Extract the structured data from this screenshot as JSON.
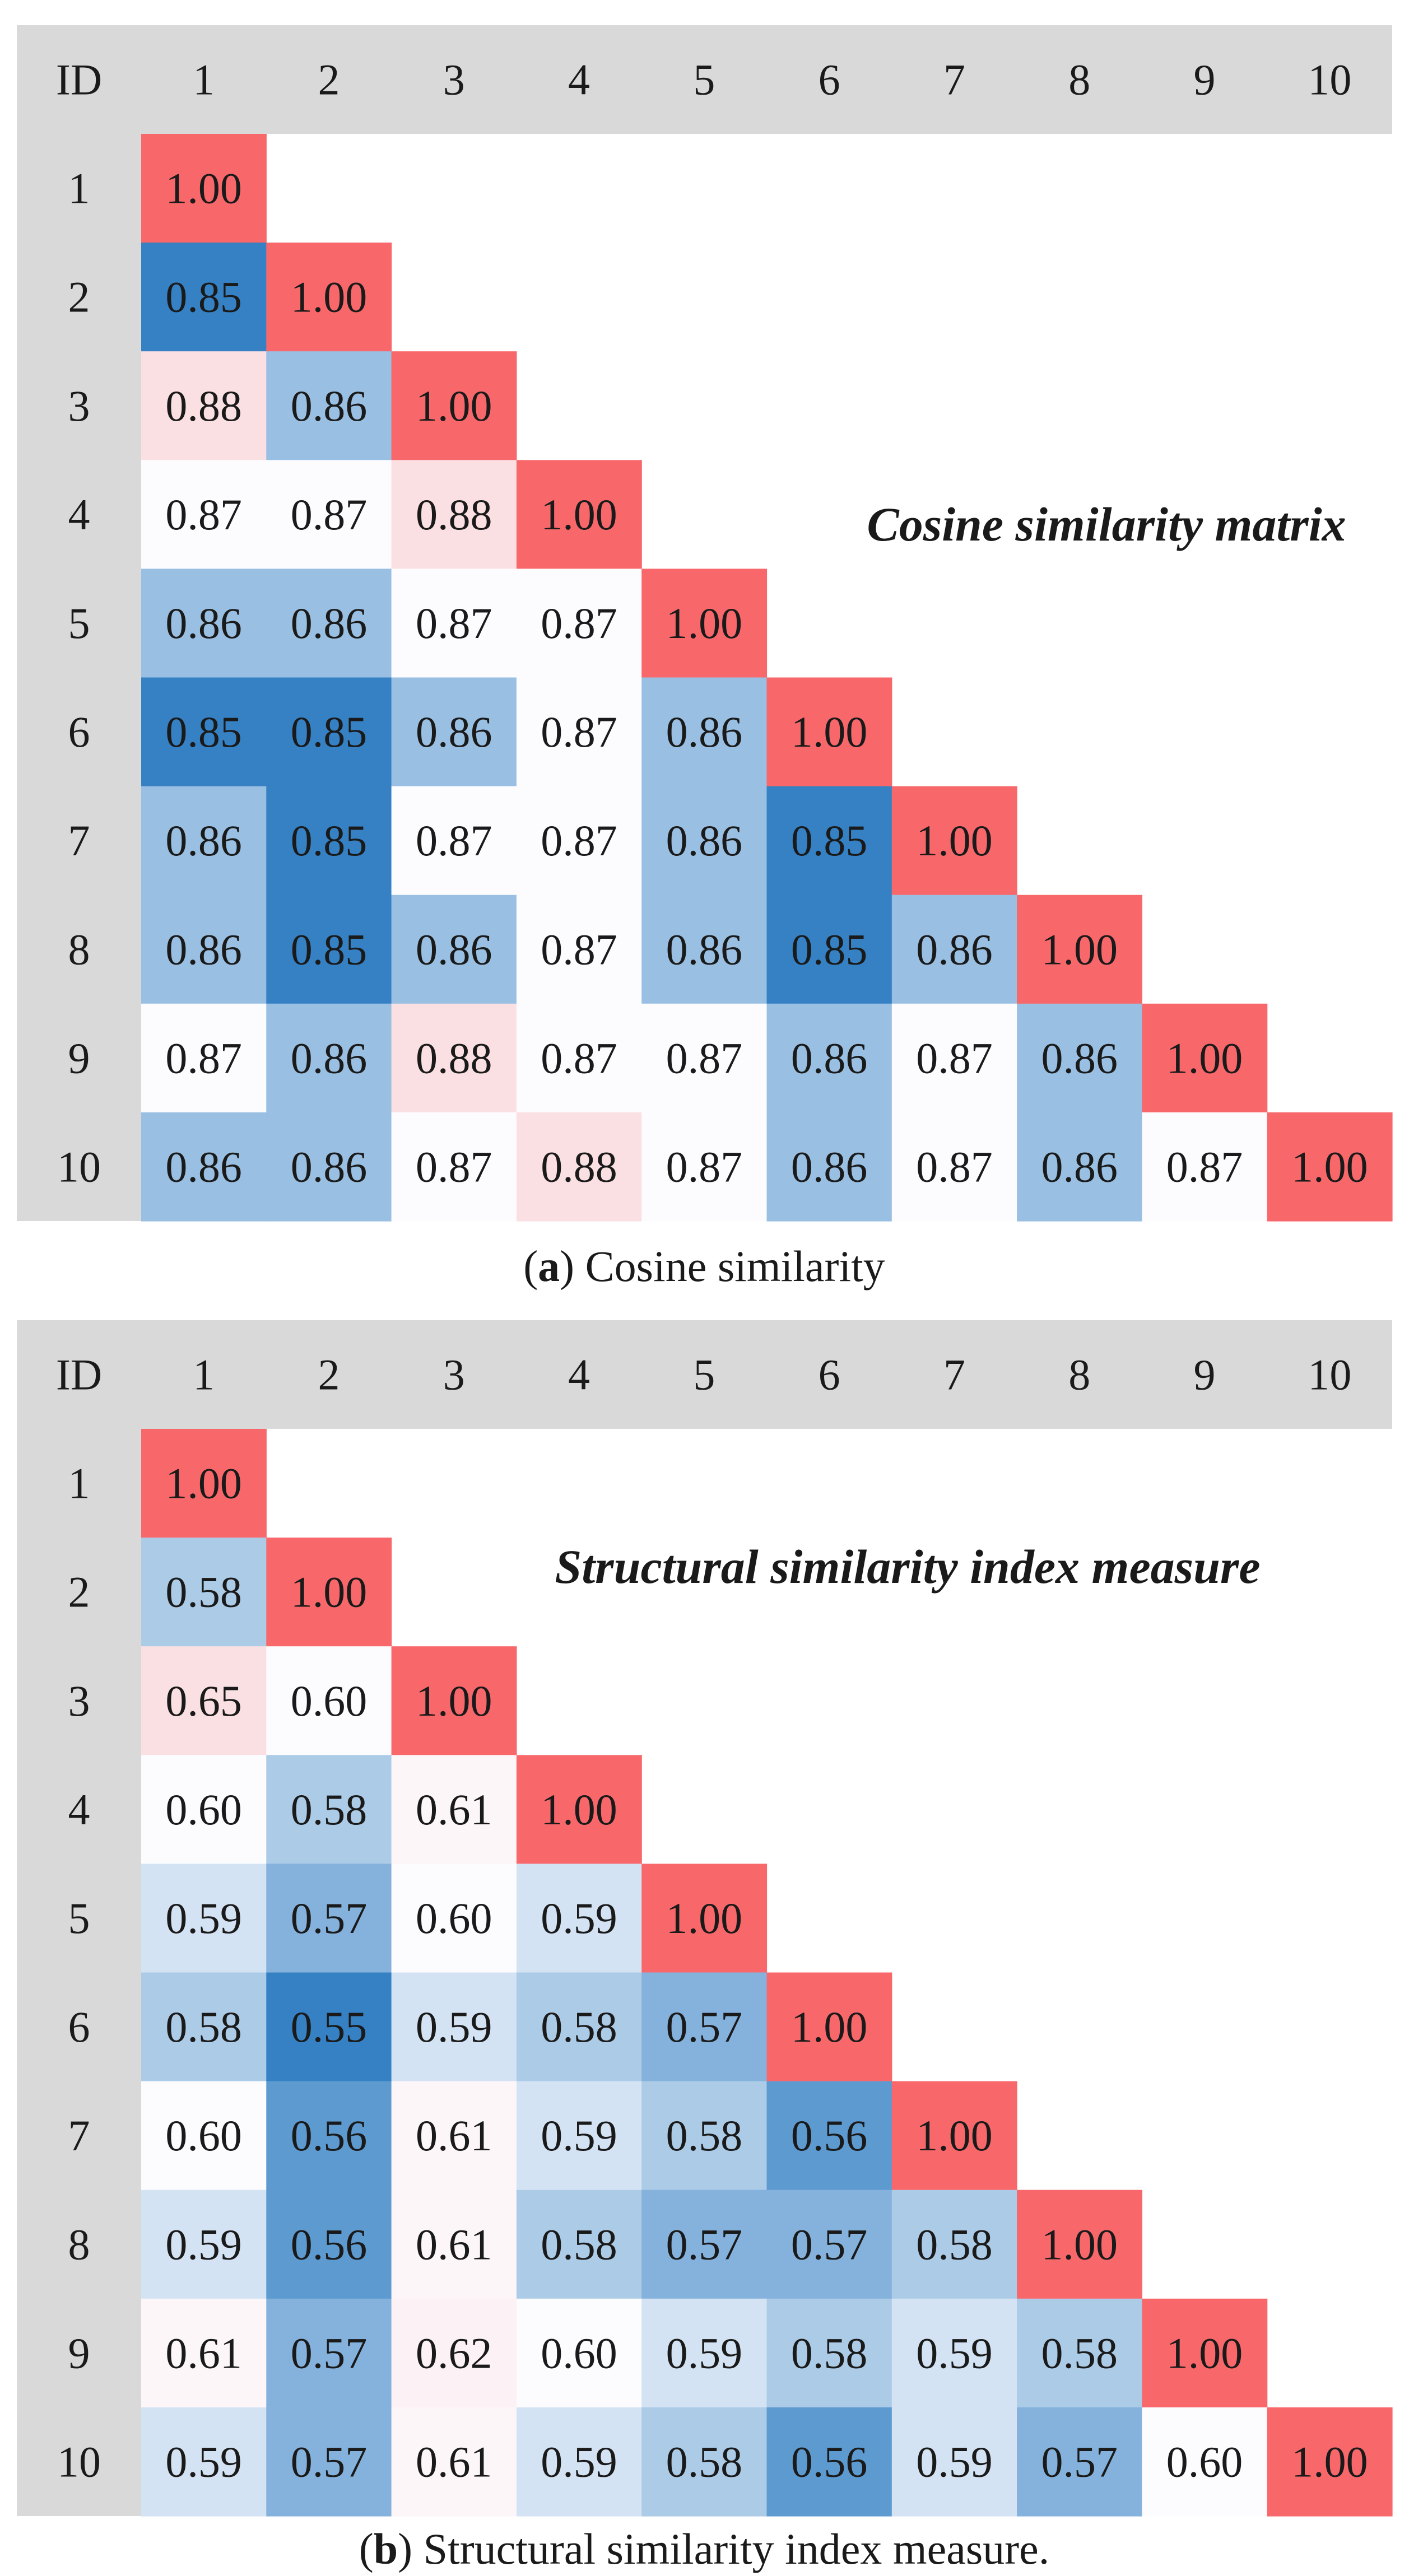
{
  "colors": {
    "header_bg": "#d9d9d9",
    "diagonal": "#f8686b",
    "low": "#3581c4",
    "mid": "#fcfcff",
    "high": "#fbe0e3",
    "text": "#1a1a1a"
  },
  "chart_data": [
    {
      "type": "heatmap",
      "title": "Cosine similarity matrix",
      "caption_label": "a",
      "caption_text": " Cosine similarity",
      "corner_label": "ID",
      "ids": [
        "1",
        "2",
        "3",
        "4",
        "5",
        "6",
        "7",
        "8",
        "9",
        "10"
      ],
      "vmin": 0.85,
      "vmid": 0.87,
      "vmax": 0.88,
      "rows": [
        [
          1.0
        ],
        [
          0.85,
          1.0
        ],
        [
          0.88,
          0.86,
          1.0
        ],
        [
          0.87,
          0.87,
          0.88,
          1.0
        ],
        [
          0.86,
          0.86,
          0.87,
          0.87,
          1.0
        ],
        [
          0.85,
          0.85,
          0.86,
          0.87,
          0.86,
          1.0
        ],
        [
          0.86,
          0.85,
          0.87,
          0.87,
          0.86,
          0.85,
          1.0
        ],
        [
          0.86,
          0.85,
          0.86,
          0.87,
          0.86,
          0.85,
          0.86,
          1.0
        ],
        [
          0.87,
          0.86,
          0.88,
          0.87,
          0.87,
          0.86,
          0.87,
          0.86,
          1.0
        ],
        [
          0.86,
          0.86,
          0.87,
          0.88,
          0.87,
          0.86,
          0.87,
          0.86,
          0.87,
          1.0
        ]
      ]
    },
    {
      "type": "heatmap",
      "title": "Structural similarity index measure",
      "caption_label": "b",
      "caption_text": " Structural similarity index measure.",
      "corner_label": "ID",
      "ids": [
        "1",
        "2",
        "3",
        "4",
        "5",
        "6",
        "7",
        "8",
        "9",
        "10"
      ],
      "vmin": 0.55,
      "vmid": 0.6,
      "vmax": 0.65,
      "rows": [
        [
          1.0
        ],
        [
          0.58,
          1.0
        ],
        [
          0.65,
          0.6,
          1.0
        ],
        [
          0.6,
          0.58,
          0.61,
          1.0
        ],
        [
          0.59,
          0.57,
          0.6,
          0.59,
          1.0
        ],
        [
          0.58,
          0.55,
          0.59,
          0.58,
          0.57,
          1.0
        ],
        [
          0.6,
          0.56,
          0.61,
          0.59,
          0.58,
          0.56,
          1.0
        ],
        [
          0.59,
          0.56,
          0.61,
          0.58,
          0.57,
          0.57,
          0.58,
          1.0
        ],
        [
          0.61,
          0.57,
          0.62,
          0.6,
          0.59,
          0.58,
          0.59,
          0.58,
          1.0
        ],
        [
          0.59,
          0.57,
          0.61,
          0.59,
          0.58,
          0.56,
          0.59,
          0.57,
          0.6,
          1.0
        ]
      ]
    }
  ]
}
